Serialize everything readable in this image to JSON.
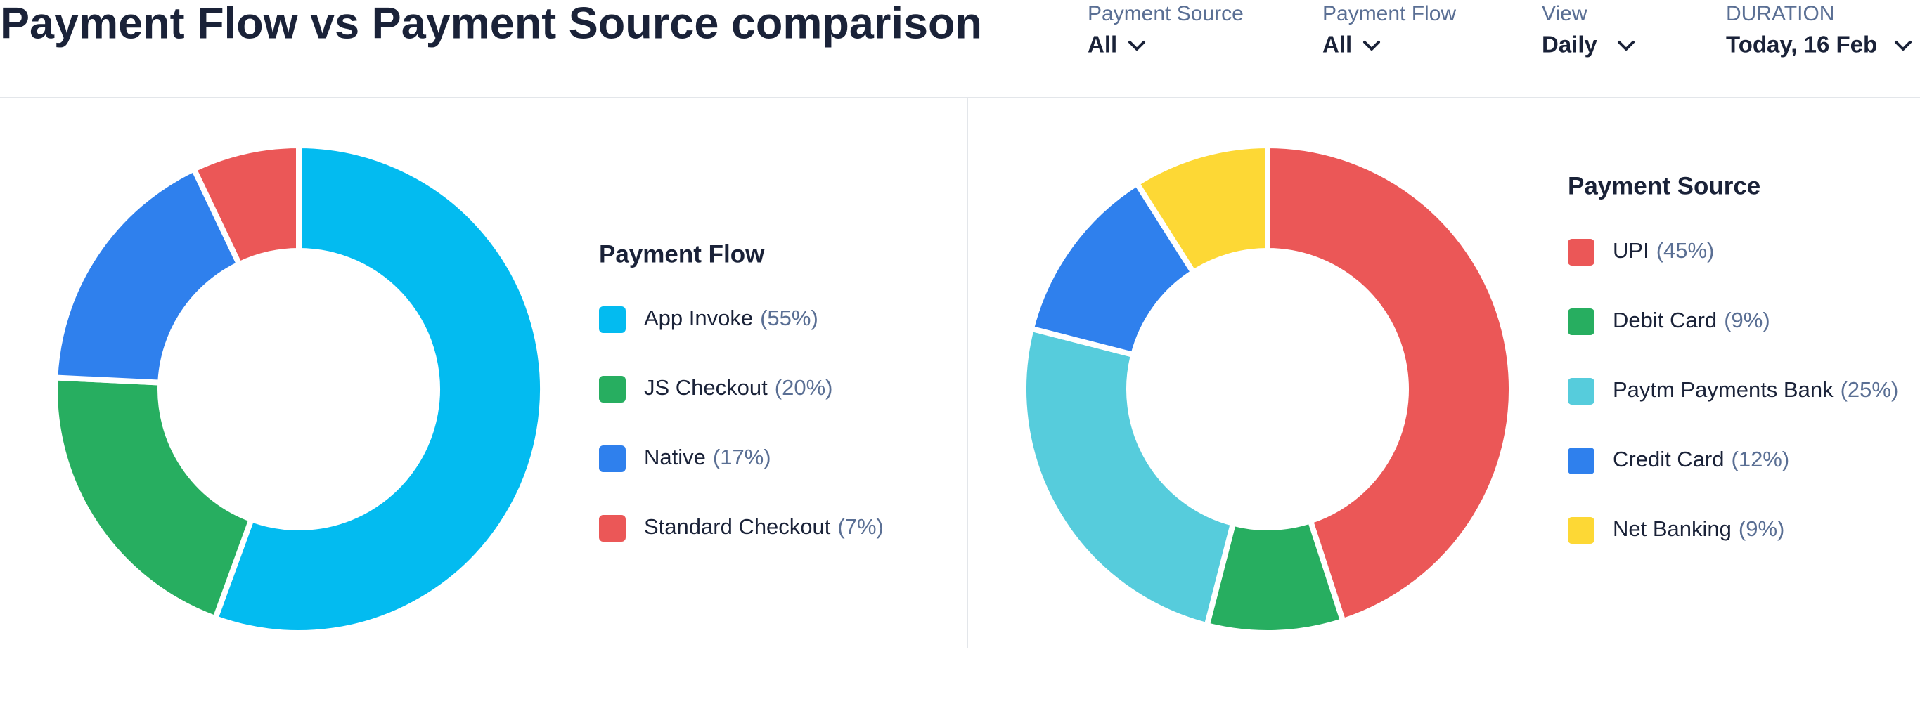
{
  "header": {
    "title": "Payment Flow vs Payment Source comparison",
    "filters": [
      {
        "label": "Payment Source",
        "value": "All"
      },
      {
        "label": "Payment Flow",
        "value": "All"
      },
      {
        "label": "View",
        "value": "Daily"
      },
      {
        "label": "DURATION",
        "value": "Today, 16 Feb"
      }
    ]
  },
  "chart_data": [
    {
      "type": "donut",
      "title": "Payment Flow",
      "categories": [
        "App Invoke",
        "JS Checkout",
        "Native",
        "Standard Checkout"
      ],
      "values": [
        55,
        20,
        17,
        7
      ],
      "value_labels": [
        "(55%)",
        "(20%)",
        "(17%)",
        "(7%)"
      ],
      "colors": [
        "#03bbf0",
        "#27ae60",
        "#2f80ed",
        "#eb5757"
      ]
    },
    {
      "type": "donut",
      "title": "Payment Source",
      "categories": [
        "UPI",
        "Debit Card",
        "Paytm Payments Bank",
        "Credit Card",
        "Net Banking"
      ],
      "values": [
        45,
        9,
        25,
        12,
        9
      ],
      "value_labels": [
        "(45%)",
        "(9%)",
        "(25%)",
        "(12%)",
        "(9%)"
      ],
      "colors": [
        "#eb5757",
        "#27ae60",
        "#56ccdc",
        "#2f80ed",
        "#fdd835"
      ]
    }
  ]
}
